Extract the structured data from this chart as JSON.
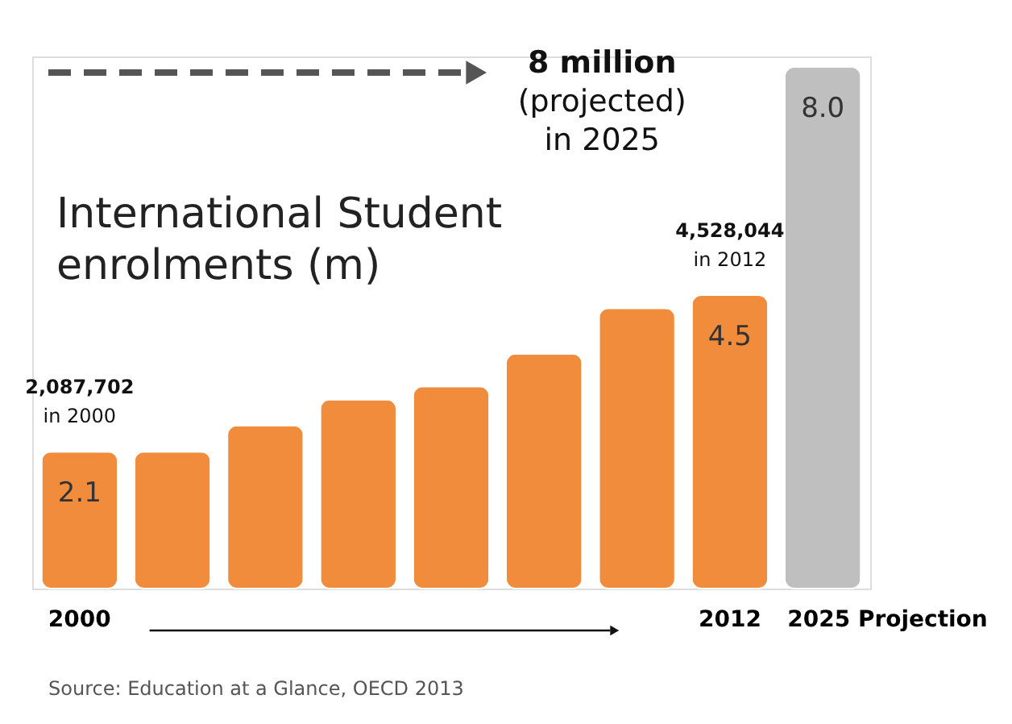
{
  "chart_data": {
    "type": "bar",
    "title": "International Student\nenrolments (m)",
    "categories": [
      "2000",
      null,
      null,
      null,
      null,
      null,
      null,
      "2012",
      "2025 Projection"
    ],
    "values": [
      2.1,
      2.1,
      2.5,
      2.9,
      3.1,
      3.6,
      4.3,
      4.5,
      8.0
    ],
    "colors": [
      "#f08c3c",
      "#f08c3c",
      "#f08c3c",
      "#f08c3c",
      "#f08c3c",
      "#f08c3c",
      "#f08c3c",
      "#f08c3c",
      "#bfbfbf"
    ],
    "value_labels": [
      "2.1",
      null,
      null,
      null,
      null,
      null,
      null,
      "4.5",
      "8.0"
    ],
    "annotations": [
      {
        "text": "2,087,702\nin 2000",
        "x": "2000",
        "y": 2.1
      },
      {
        "text": "4,528,044\nin 2012",
        "x": "2012",
        "y": 4.5
      },
      "8 million\n(projected)\nin 2025",
      "Source: Education at a Glance, OECD 2013"
    ],
    "grid": false
  }
}
